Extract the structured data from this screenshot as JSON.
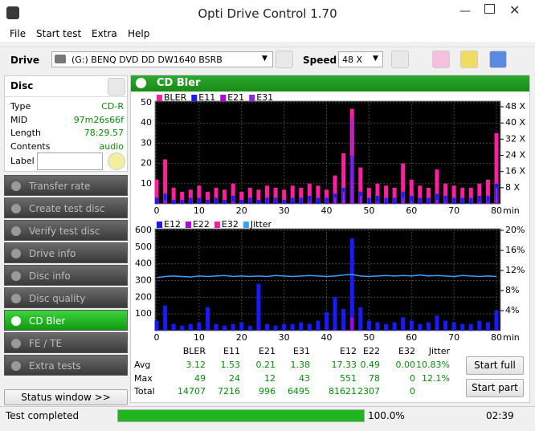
{
  "window": {
    "title": "Opti Drive Control 1.70"
  },
  "menu": [
    "File",
    "Start test",
    "Extra",
    "Help"
  ],
  "toolbar": {
    "drive_label": "Drive",
    "drive": "(G:)  BENQ DVD DD DW1640 BSRB",
    "speed_label": "Speed",
    "speed": "48 X"
  },
  "disc": {
    "title": "Disc",
    "fields": [
      [
        "Type",
        "CD-R"
      ],
      [
        "MID",
        "97m26s66f"
      ],
      [
        "Length",
        "78:29.57"
      ],
      [
        "Contents",
        "audio"
      ]
    ],
    "label_field": "Label"
  },
  "nav": {
    "items": [
      "Transfer rate",
      "Create test disc",
      "Verify test disc",
      "Drive info",
      "Disc info",
      "Disc quality",
      "CD Bler",
      "FE / TE",
      "Extra tests"
    ],
    "active": "CD Bler",
    "status_window": "Status window >>"
  },
  "panel": {
    "title": "CD Bler"
  },
  "chart_data": [
    {
      "type": "bar",
      "xlabel": "min",
      "x": [
        0,
        2,
        4,
        6,
        8,
        10,
        12,
        14,
        16,
        18,
        20,
        22,
        24,
        26,
        28,
        30,
        32,
        34,
        36,
        38,
        40,
        42,
        44,
        46,
        48,
        50,
        52,
        54,
        56,
        58,
        60,
        62,
        64,
        66,
        68,
        70,
        72,
        74,
        76,
        78,
        80
      ],
      "xlim": [
        0,
        80
      ],
      "xticks": [
        0,
        10,
        20,
        30,
        40,
        50,
        60,
        70,
        80
      ],
      "ylim": [
        0,
        50
      ],
      "yticks": [
        10,
        20,
        30,
        40,
        50
      ],
      "y2lim": [
        0,
        50
      ],
      "y2ticks": [
        {
          "value": 8,
          "label": "8 X"
        },
        {
          "value": 16,
          "label": "16 X"
        },
        {
          "value": 24,
          "label": "24 X"
        },
        {
          "value": 32,
          "label": "32 X"
        },
        {
          "value": 40,
          "label": "40 X"
        },
        {
          "value": 48,
          "label": "48 X"
        }
      ],
      "grid": true,
      "series": [
        {
          "name": "BLER",
          "color": "#ff1fa0",
          "values": [
            12,
            22,
            8,
            6,
            7,
            9,
            6,
            8,
            7,
            10,
            6,
            8,
            7,
            9,
            8,
            7,
            9,
            8,
            10,
            9,
            7,
            14,
            25,
            47,
            18,
            8,
            10,
            9,
            8,
            20,
            12,
            9,
            8,
            17,
            10,
            9,
            8,
            8,
            10,
            12,
            35
          ]
        },
        {
          "name": "E11",
          "color": "#1a1aff",
          "values": [
            3,
            5,
            2,
            2,
            3,
            3,
            2,
            3,
            2,
            4,
            2,
            3,
            2,
            3,
            3,
            2,
            3,
            3,
            4,
            3,
            3,
            5,
            8,
            24,
            6,
            3,
            4,
            3,
            3,
            6,
            4,
            3,
            3,
            5,
            4,
            3,
            3,
            3,
            4,
            4,
            10
          ]
        },
        {
          "name": "E21",
          "color": "#b000e0",
          "values": [
            0,
            1,
            0,
            0,
            0,
            0,
            0,
            0,
            0,
            1,
            0,
            0,
            0,
            0,
            0,
            0,
            0,
            0,
            1,
            0,
            0,
            1,
            2,
            12,
            1,
            0,
            0,
            0,
            0,
            1,
            0,
            0,
            0,
            1,
            0,
            0,
            0,
            0,
            0,
            0,
            3
          ]
        },
        {
          "name": "E31",
          "color": "#8a2be2",
          "values": [
            0,
            2,
            0,
            0,
            0,
            0,
            0,
            0,
            0,
            1,
            0,
            0,
            0,
            0,
            0,
            0,
            0,
            0,
            1,
            0,
            0,
            3,
            6,
            43,
            4,
            0,
            1,
            0,
            0,
            3,
            1,
            0,
            0,
            2,
            1,
            0,
            0,
            0,
            1,
            1,
            8
          ]
        }
      ]
    },
    {
      "type": "bar",
      "xlabel": "min",
      "x": [
        0,
        2,
        4,
        6,
        8,
        10,
        12,
        14,
        16,
        18,
        20,
        22,
        24,
        26,
        28,
        30,
        32,
        34,
        36,
        38,
        40,
        42,
        44,
        46,
        48,
        50,
        52,
        54,
        56,
        58,
        60,
        62,
        64,
        66,
        68,
        70,
        72,
        74,
        76,
        78,
        80
      ],
      "xlim": [
        0,
        80
      ],
      "xticks": [
        0,
        10,
        20,
        30,
        40,
        50,
        60,
        70,
        80
      ],
      "ylim": [
        0,
        600
      ],
      "yticks": [
        100,
        200,
        300,
        400,
        500,
        600
      ],
      "y2lim": [
        0,
        20
      ],
      "y2ticks": [
        {
          "value": 4,
          "label": "4%"
        },
        {
          "value": 8,
          "label": "8%"
        },
        {
          "value": 12,
          "label": "12%"
        },
        {
          "value": 16,
          "label": "16%"
        },
        {
          "value": 20,
          "label": "20%"
        }
      ],
      "grid": true,
      "series": [
        {
          "name": "E12",
          "color": "#1a1aff",
          "values": [
            60,
            150,
            40,
            30,
            40,
            50,
            140,
            40,
            30,
            40,
            50,
            30,
            280,
            40,
            30,
            40,
            40,
            50,
            40,
            60,
            110,
            200,
            130,
            551,
            140,
            60,
            50,
            40,
            50,
            80,
            60,
            40,
            50,
            90,
            60,
            50,
            40,
            40,
            60,
            50,
            120
          ]
        },
        {
          "name": "E22",
          "color": "#b000e0",
          "values": [
            0,
            2,
            0,
            0,
            0,
            1,
            2,
            0,
            0,
            0,
            0,
            0,
            5,
            0,
            0,
            0,
            0,
            0,
            0,
            1,
            2,
            6,
            4,
            78,
            3,
            1,
            0,
            0,
            0,
            2,
            1,
            0,
            0,
            2,
            1,
            0,
            0,
            0,
            1,
            0,
            3
          ]
        },
        {
          "name": "E32",
          "color": "#ff1fa0",
          "values": [
            0,
            0,
            0,
            0,
            0,
            0,
            0,
            0,
            0,
            0,
            0,
            0,
            0,
            0,
            0,
            0,
            0,
            0,
            0,
            0,
            0,
            0,
            0,
            0,
            0,
            0,
            0,
            0,
            0,
            0,
            0,
            0,
            0,
            0,
            0,
            0,
            0,
            0,
            0,
            0,
            0
          ]
        },
        {
          "name": "Jitter",
          "color": "#3aa0ff",
          "axis": "y2",
          "values": [
            10.6,
            10.8,
            10.9,
            10.8,
            10.7,
            10.9,
            10.8,
            10.9,
            11.0,
            10.8,
            10.9,
            10.8,
            10.9,
            10.8,
            11.0,
            10.9,
            10.8,
            10.9,
            11.0,
            10.9,
            10.8,
            10.9,
            11.1,
            11.2,
            10.9,
            10.8,
            10.9,
            11.0,
            10.9,
            11.0,
            10.9,
            11.1,
            10.9,
            11.0,
            10.9,
            10.8,
            11.0,
            10.9,
            10.8,
            10.9,
            10.8
          ]
        }
      ]
    }
  ],
  "stats": {
    "header": [
      "BLER",
      "E11",
      "E21",
      "E31",
      "E12",
      "E22",
      "E32",
      "Jitter"
    ],
    "rows": [
      [
        "Avg",
        "3.12",
        "1.53",
        "0.21",
        "1.38",
        "17.33",
        "0.49",
        "0.00",
        "10.83%"
      ],
      [
        "Max",
        "49",
        "24",
        "12",
        "43",
        "551",
        "78",
        "0",
        "12.1%"
      ],
      [
        "Total",
        "14707",
        "7216",
        "996",
        "6495",
        "81621",
        "2307",
        "0"
      ]
    ]
  },
  "buttons": [
    "Start full",
    "Start part"
  ],
  "status": {
    "text": "Test completed",
    "progress": 100,
    "progress_label": "100.0%",
    "time": "02:39"
  }
}
